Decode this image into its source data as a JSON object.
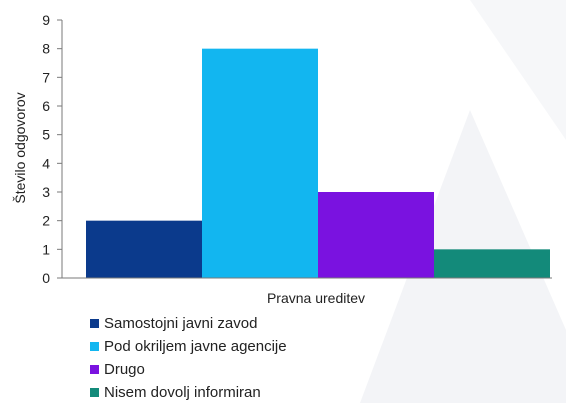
{
  "chart_data": {
    "type": "bar",
    "xlabel": "Pravna ureditev",
    "ylabel": "Število odgovorov",
    "ylim": [
      0,
      9
    ],
    "yticks": [
      0,
      1,
      2,
      3,
      4,
      5,
      6,
      7,
      8,
      9
    ],
    "grid": false,
    "legend_position": "bottom-left",
    "categories": [
      "Pravna ureditev"
    ],
    "series": [
      {
        "name": "Samostojni javni zavod",
        "values": [
          2
        ],
        "color": "#0b3a8c"
      },
      {
        "name": "Pod okriljem javne agencije",
        "values": [
          8
        ],
        "color": "#12b6f0"
      },
      {
        "name": "Drugo",
        "values": [
          3
        ],
        "color": "#7a12e0"
      },
      {
        "name": "Nisem dovolj informiran",
        "values": [
          1
        ],
        "color": "#138a7a"
      }
    ]
  }
}
